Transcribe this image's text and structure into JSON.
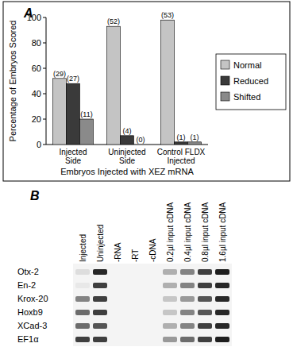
{
  "chart_data": {
    "type": "bar",
    "title": "A",
    "x_label": "Embryos Injected with XEZ mRNA",
    "y_label": "Percentage of Embryos Scored",
    "categories": [
      "Injected Side",
      "Uninjected Side",
      "Control FLDX Injected"
    ],
    "series": [
      {
        "name": "Normal",
        "color": "#c4c4c4",
        "values": [
          52,
          93,
          98
        ],
        "count_labels": [
          "(29)",
          "(52)",
          "(53)"
        ]
      },
      {
        "name": "Reduced",
        "color": "#3a3a3a",
        "values": [
          48,
          7,
          2
        ],
        "count_labels": [
          "(27)",
          "(4)",
          "(1)"
        ]
      },
      {
        "name": "Shifted",
        "color": "#8a8a8a",
        "values": [
          20,
          0,
          2
        ],
        "count_labels": [
          "(11)",
          "(0)",
          "(1)"
        ]
      }
    ],
    "ylim": [
      0,
      100
    ],
    "yticks": [
      0,
      20,
      40,
      60,
      80,
      100
    ],
    "grid": false,
    "legend": "right"
  },
  "gel": {
    "title": "B",
    "lanes": [
      "Injected",
      "Uninjected",
      "-RNA",
      "-RT",
      "-cDNA",
      "0.2µl input cDNA",
      "0.4µl input cDNA",
      "0.8µl input cDNA",
      "1.6µl input cDNA"
    ],
    "genes": [
      "Otx-2",
      "En-2",
      "Krox-20",
      "Hoxb9",
      "XCad-3",
      "EF1α"
    ],
    "intensity": [
      [
        0.1,
        0.9,
        0,
        0,
        0,
        0.3,
        0.5,
        0.8,
        0.95
      ],
      [
        0.05,
        0.8,
        0,
        0,
        0,
        0.3,
        0.5,
        0.8,
        0.9
      ],
      [
        0.5,
        0.8,
        0,
        0,
        0,
        0.2,
        0.4,
        0.7,
        0.9
      ],
      [
        0.6,
        0.8,
        0,
        0,
        0,
        0.2,
        0.5,
        0.7,
        0.9
      ],
      [
        0.6,
        0.7,
        0,
        0,
        0,
        0.3,
        0.5,
        0.8,
        0.9
      ],
      [
        0.8,
        0.8,
        0,
        0,
        0,
        0.4,
        0.6,
        0.8,
        0.95
      ]
    ]
  }
}
